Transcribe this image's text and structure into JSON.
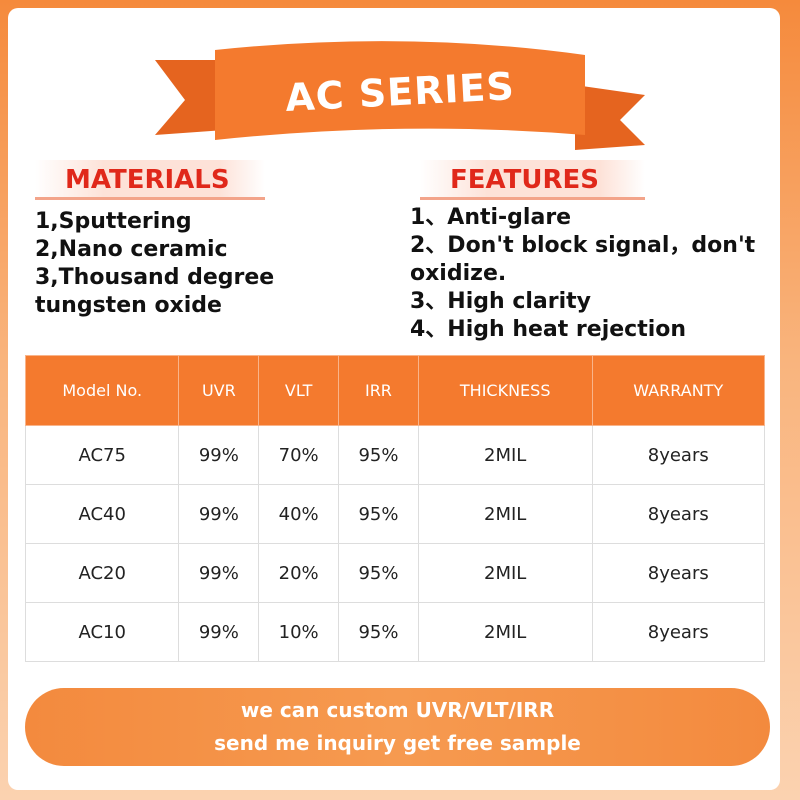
{
  "banner": {
    "title": "AC SERIES"
  },
  "materials": {
    "heading": "MATERIALS",
    "items": [
      "1,Sputtering",
      "2,Nano ceramic",
      "3,Thousand degree tungsten oxide"
    ]
  },
  "features": {
    "heading": "FEATURES",
    "items": [
      "1、Anti-glare",
      "2、Don't block signal，don't oxidize.",
      "3、High clarity",
      "4、High heat rejection"
    ]
  },
  "table": {
    "header": [
      "Model No.",
      "UVR",
      "VLT",
      "IRR",
      "THICKNESS",
      "WARRANTY"
    ],
    "rows": [
      [
        "AC75",
        "99%",
        "70%",
        "95%",
        "2MIL",
        "8years"
      ],
      [
        "AC40",
        "99%",
        "40%",
        "95%",
        "2MIL",
        "8years"
      ],
      [
        "AC20",
        "99%",
        "20%",
        "95%",
        "2MIL",
        "8years"
      ],
      [
        "AC10",
        "99%",
        "10%",
        "95%",
        "2MIL",
        "8years"
      ]
    ]
  },
  "footer": {
    "lines": [
      "we can custom UVR/VLT/IRR",
      "send me inquiry get free sample"
    ]
  }
}
